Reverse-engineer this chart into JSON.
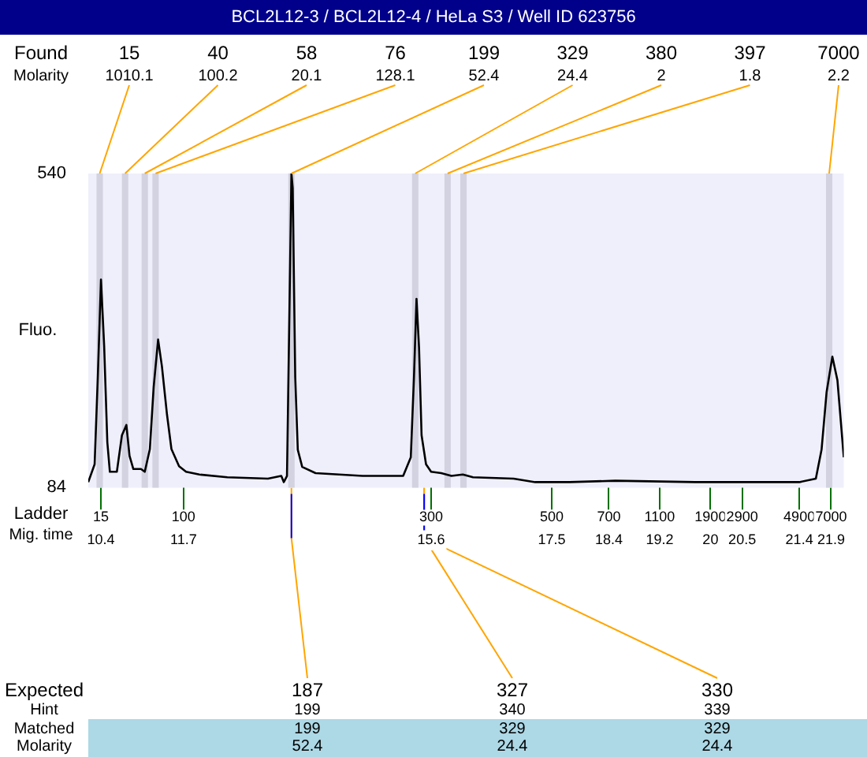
{
  "chart_data": {
    "type": "line",
    "title": "BCL2L12-3 / BCL2L12-4 / HeLa S3 / Well ID 623756",
    "ylabel": "Fluo.",
    "xlim": [
      10.2,
      22.1
    ],
    "ylim": [
      84,
      540
    ],
    "yticks": [
      84,
      540
    ],
    "xticks": [
      10.4,
      11.7,
      15.6,
      17.5,
      18.4,
      19.2,
      20,
      20.5,
      21.4,
      21.9
    ],
    "grid": false,
    "legend": false,
    "marker": "none",
    "line_style": "solid",
    "series": [
      {
        "color": "#000000",
        "x": [
          10.2,
          10.3,
          10.35,
          10.4,
          10.45,
          10.5,
          10.54,
          10.65,
          10.73,
          10.8,
          10.85,
          10.91,
          11.03,
          11.09,
          11.17,
          11.23,
          11.3,
          11.36,
          11.44,
          11.51,
          11.63,
          11.74,
          11.95,
          12.39,
          13.03,
          13.24,
          13.28,
          13.33,
          13.37,
          13.4,
          13.42,
          13.46,
          13.5,
          13.57,
          13.78,
          14.52,
          15.16,
          15.28,
          15.33,
          15.37,
          15.41,
          15.45,
          15.52,
          15.6,
          15.76,
          15.92,
          16.1,
          16.26,
          16.9,
          17.24,
          17.78,
          18.5,
          19.76,
          20.92,
          21.4,
          21.66,
          21.75,
          21.83,
          21.92,
          22.0,
          22.1
        ],
        "values": [
          92,
          118,
          244,
          386,
          290,
          150,
          107,
          107,
          160,
          175,
          130,
          111,
          111,
          107,
          140,
          230,
          299,
          260,
          190,
          140,
          115,
          107,
          103,
          99,
          97,
          101,
          92,
          101,
          350,
          540,
          519,
          244,
          139,
          114,
          105,
          101,
          101,
          128,
          244,
          358,
          287,
          160,
          118,
          107,
          105,
          101,
          103,
          99,
          97,
          92,
          92,
          94,
          92,
          92,
          92,
          97,
          139,
          223,
          274,
          240,
          128
        ]
      }
    ],
    "bands": [
      {
        "axis": "x",
        "from": 10.33,
        "to": 10.43,
        "label": "15",
        "color": "#d2d2e0"
      },
      {
        "axis": "x",
        "from": 10.73,
        "to": 10.83,
        "label": "40",
        "color": "#d2d2e0"
      },
      {
        "axis": "x",
        "from": 11.04,
        "to": 11.14,
        "label": "58",
        "color": "#d2d2e0"
      },
      {
        "axis": "x",
        "from": 11.21,
        "to": 11.31,
        "label": "76",
        "color": "#d2d2e0"
      },
      {
        "axis": "x",
        "from": 13.35,
        "to": 13.45,
        "label": "199",
        "color": "#d2d2e0"
      },
      {
        "axis": "x",
        "from": 15.3,
        "to": 15.4,
        "label": "329",
        "color": "#d2d2e0"
      },
      {
        "axis": "x",
        "from": 15.81,
        "to": 15.91,
        "label": "380",
        "color": "#d2d2e0"
      },
      {
        "axis": "x",
        "from": 16.06,
        "to": 16.16,
        "label": "397",
        "color": "#d2d2e0"
      },
      {
        "axis": "x",
        "from": 21.82,
        "to": 21.92,
        "label": "7000",
        "color": "#d2d2e0"
      }
    ],
    "annotations": [
      {
        "text": "1010.1",
        "x": 10.38,
        "y": 540
      },
      {
        "text": "100.2",
        "x": 10.78,
        "y": 540
      },
      {
        "text": "20.1",
        "x": 11.09,
        "y": 540
      },
      {
        "text": "128.1",
        "x": 11.26,
        "y": 540
      },
      {
        "text": "52.4",
        "x": 13.4,
        "y": 540
      },
      {
        "text": "24.4",
        "x": 15.35,
        "y": 540
      },
      {
        "text": "2",
        "x": 15.86,
        "y": 540
      },
      {
        "text": "1.8",
        "x": 16.11,
        "y": 540
      },
      {
        "text": "2.2",
        "x": 21.87,
        "y": 540
      },
      {
        "text": "187",
        "x": 13.4,
        "y": 84
      },
      {
        "text": "327",
        "x": 15.49,
        "y": 84
      },
      {
        "text": "330",
        "x": 15.49,
        "y": 84
      },
      "Found",
      "Molarity",
      "Ladder",
      "Mig. time",
      "Expected",
      "Hint",
      "Matched",
      "Molarity",
      "199",
      "340",
      "339",
      "199",
      "329",
      "329",
      "52.4",
      "24.4",
      "24.4",
      "15",
      "100",
      "300",
      "500",
      "700",
      "1100",
      "1900",
      "2900",
      "4900",
      "7000"
    ]
  }
}
